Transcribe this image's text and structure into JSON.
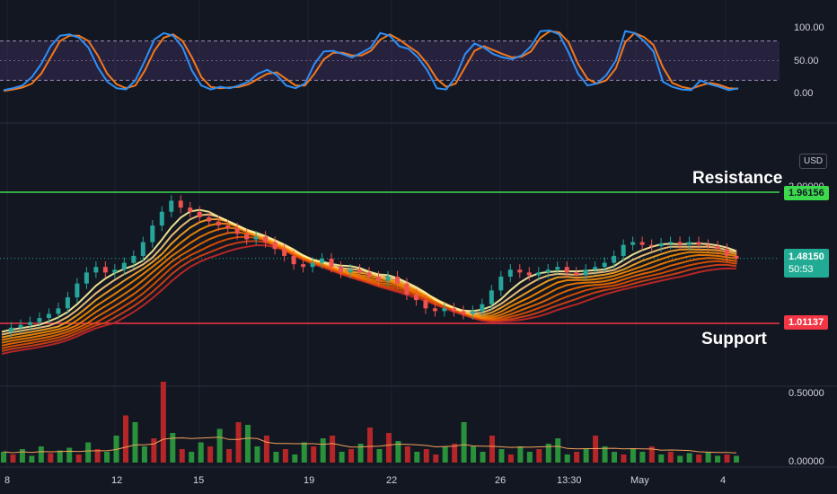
{
  "chart_data": {
    "type": "candlestick",
    "x_ticks": [
      "8",
      "12",
      "15",
      "19",
      "22",
      "26",
      "13:30",
      "May",
      "4"
    ],
    "currency": "USD",
    "oscillator": {
      "y_ticks": [
        "100.00",
        "50.00",
        "0.00"
      ],
      "bands": [
        20,
        80
      ],
      "k": [
        5,
        8,
        12,
        25,
        45,
        72,
        88,
        90,
        85,
        70,
        40,
        18,
        8,
        6,
        20,
        50,
        82,
        92,
        88,
        70,
        35,
        12,
        6,
        10,
        8,
        12,
        18,
        30,
        36,
        28,
        12,
        8,
        15,
        45,
        64,
        65,
        60,
        55,
        62,
        70,
        92,
        88,
        72,
        68,
        55,
        35,
        8,
        6,
        25,
        60,
        76,
        70,
        60,
        55,
        52,
        58,
        72,
        95,
        96,
        90,
        62,
        30,
        12,
        15,
        28,
        50,
        95,
        92,
        80,
        64,
        18,
        10,
        6,
        5,
        20,
        14,
        10,
        5,
        8
      ],
      "d": [
        4,
        6,
        9,
        15,
        30,
        55,
        80,
        88,
        88,
        80,
        58,
        30,
        14,
        8,
        12,
        35,
        65,
        85,
        90,
        80,
        55,
        25,
        10,
        8,
        9,
        10,
        14,
        22,
        30,
        32,
        22,
        12,
        12,
        30,
        52,
        62,
        62,
        58,
        58,
        65,
        82,
        90,
        82,
        72,
        62,
        45,
        22,
        10,
        15,
        40,
        65,
        72,
        66,
        60,
        55,
        56,
        64,
        85,
        95,
        93,
        78,
        45,
        22,
        15,
        20,
        38,
        78,
        92,
        86,
        74,
        40,
        16,
        10,
        7,
        12,
        16,
        13,
        8,
        7
      ]
    },
    "price": {
      "y_ticks": [
        "2.00000",
        "1.50000",
        "1.00000"
      ],
      "resistance": 1.96156,
      "support": 1.01137,
      "last": 1.4815,
      "countdown": "50:53",
      "tag_labels": [
        "1.96156",
        "1.48150",
        "1.01137"
      ],
      "ema_close": [
        0.95,
        0.98,
        1.0,
        1.02,
        1.05,
        1.08,
        1.12,
        1.2,
        1.3,
        1.38,
        1.42,
        1.38,
        1.4,
        1.45,
        1.5,
        1.6,
        1.72,
        1.82,
        1.9,
        1.85,
        1.82,
        1.78,
        1.75,
        1.72,
        1.7,
        1.66,
        1.62,
        1.64,
        1.6,
        1.55,
        1.5,
        1.44,
        1.42,
        1.45,
        1.48,
        1.42,
        1.38,
        1.4,
        1.38,
        1.35,
        1.32,
        1.35,
        1.3,
        1.22,
        1.18,
        1.12,
        1.1,
        1.12,
        1.1,
        1.08,
        1.1,
        1.15,
        1.25,
        1.35,
        1.4,
        1.38,
        1.36,
        1.38,
        1.4,
        1.42,
        1.38,
        1.36,
        1.4,
        1.42,
        1.45,
        1.5,
        1.58,
        1.6,
        1.58,
        1.57,
        1.59,
        1.6,
        1.58,
        1.6,
        1.58,
        1.57,
        1.55,
        1.5,
        1.48
      ]
    },
    "volume": {
      "y_ticks": [
        "0.50000",
        "0.00000"
      ],
      "values": [
        0.08,
        0.06,
        0.1,
        0.05,
        0.12,
        0.07,
        0.09,
        0.11,
        0.06,
        0.15,
        0.1,
        0.08,
        0.2,
        0.35,
        0.3,
        0.12,
        0.18,
        0.6,
        0.22,
        0.1,
        0.08,
        0.15,
        0.12,
        0.25,
        0.1,
        0.3,
        0.28,
        0.12,
        0.2,
        0.08,
        0.1,
        0.06,
        0.15,
        0.12,
        0.18,
        0.2,
        0.08,
        0.1,
        0.14,
        0.26,
        0.1,
        0.22,
        0.16,
        0.12,
        0.08,
        0.1,
        0.06,
        0.12,
        0.14,
        0.3,
        0.12,
        0.08,
        0.2,
        0.1,
        0.06,
        0.12,
        0.08,
        0.1,
        0.14,
        0.18,
        0.06,
        0.08,
        0.1,
        0.2,
        0.12,
        0.08,
        0.06,
        0.1,
        0.08,
        0.12,
        0.06,
        0.08,
        0.05,
        0.07,
        0.06,
        0.08,
        0.05,
        0.06,
        0.05
      ],
      "up": [
        1,
        0,
        1,
        1,
        1,
        0,
        1,
        1,
        0,
        1,
        0,
        1,
        1,
        0,
        1,
        1,
        0,
        0,
        1,
        0,
        1,
        1,
        0,
        1,
        0,
        0,
        1,
        1,
        0,
        1,
        0,
        1,
        1,
        0,
        1,
        0,
        1,
        0,
        1,
        0,
        1,
        0,
        1,
        0,
        1,
        0,
        0,
        1,
        0,
        1,
        1,
        1,
        0,
        1,
        0,
        1,
        1,
        0,
        1,
        1,
        1,
        0,
        1,
        0,
        1,
        1,
        0,
        1,
        1,
        0,
        1,
        0,
        1,
        1,
        0,
        1,
        1,
        0,
        1
      ]
    }
  },
  "annotations": {
    "resistance": "Resistance",
    "support": "Support"
  },
  "colors": {
    "resistance": "#3dd94d",
    "support": "#f23645",
    "last_price": "#22ab94",
    "k_line": "#2f8ff5",
    "d_line": "#f2781c",
    "band_fill": "#7e57c2"
  }
}
